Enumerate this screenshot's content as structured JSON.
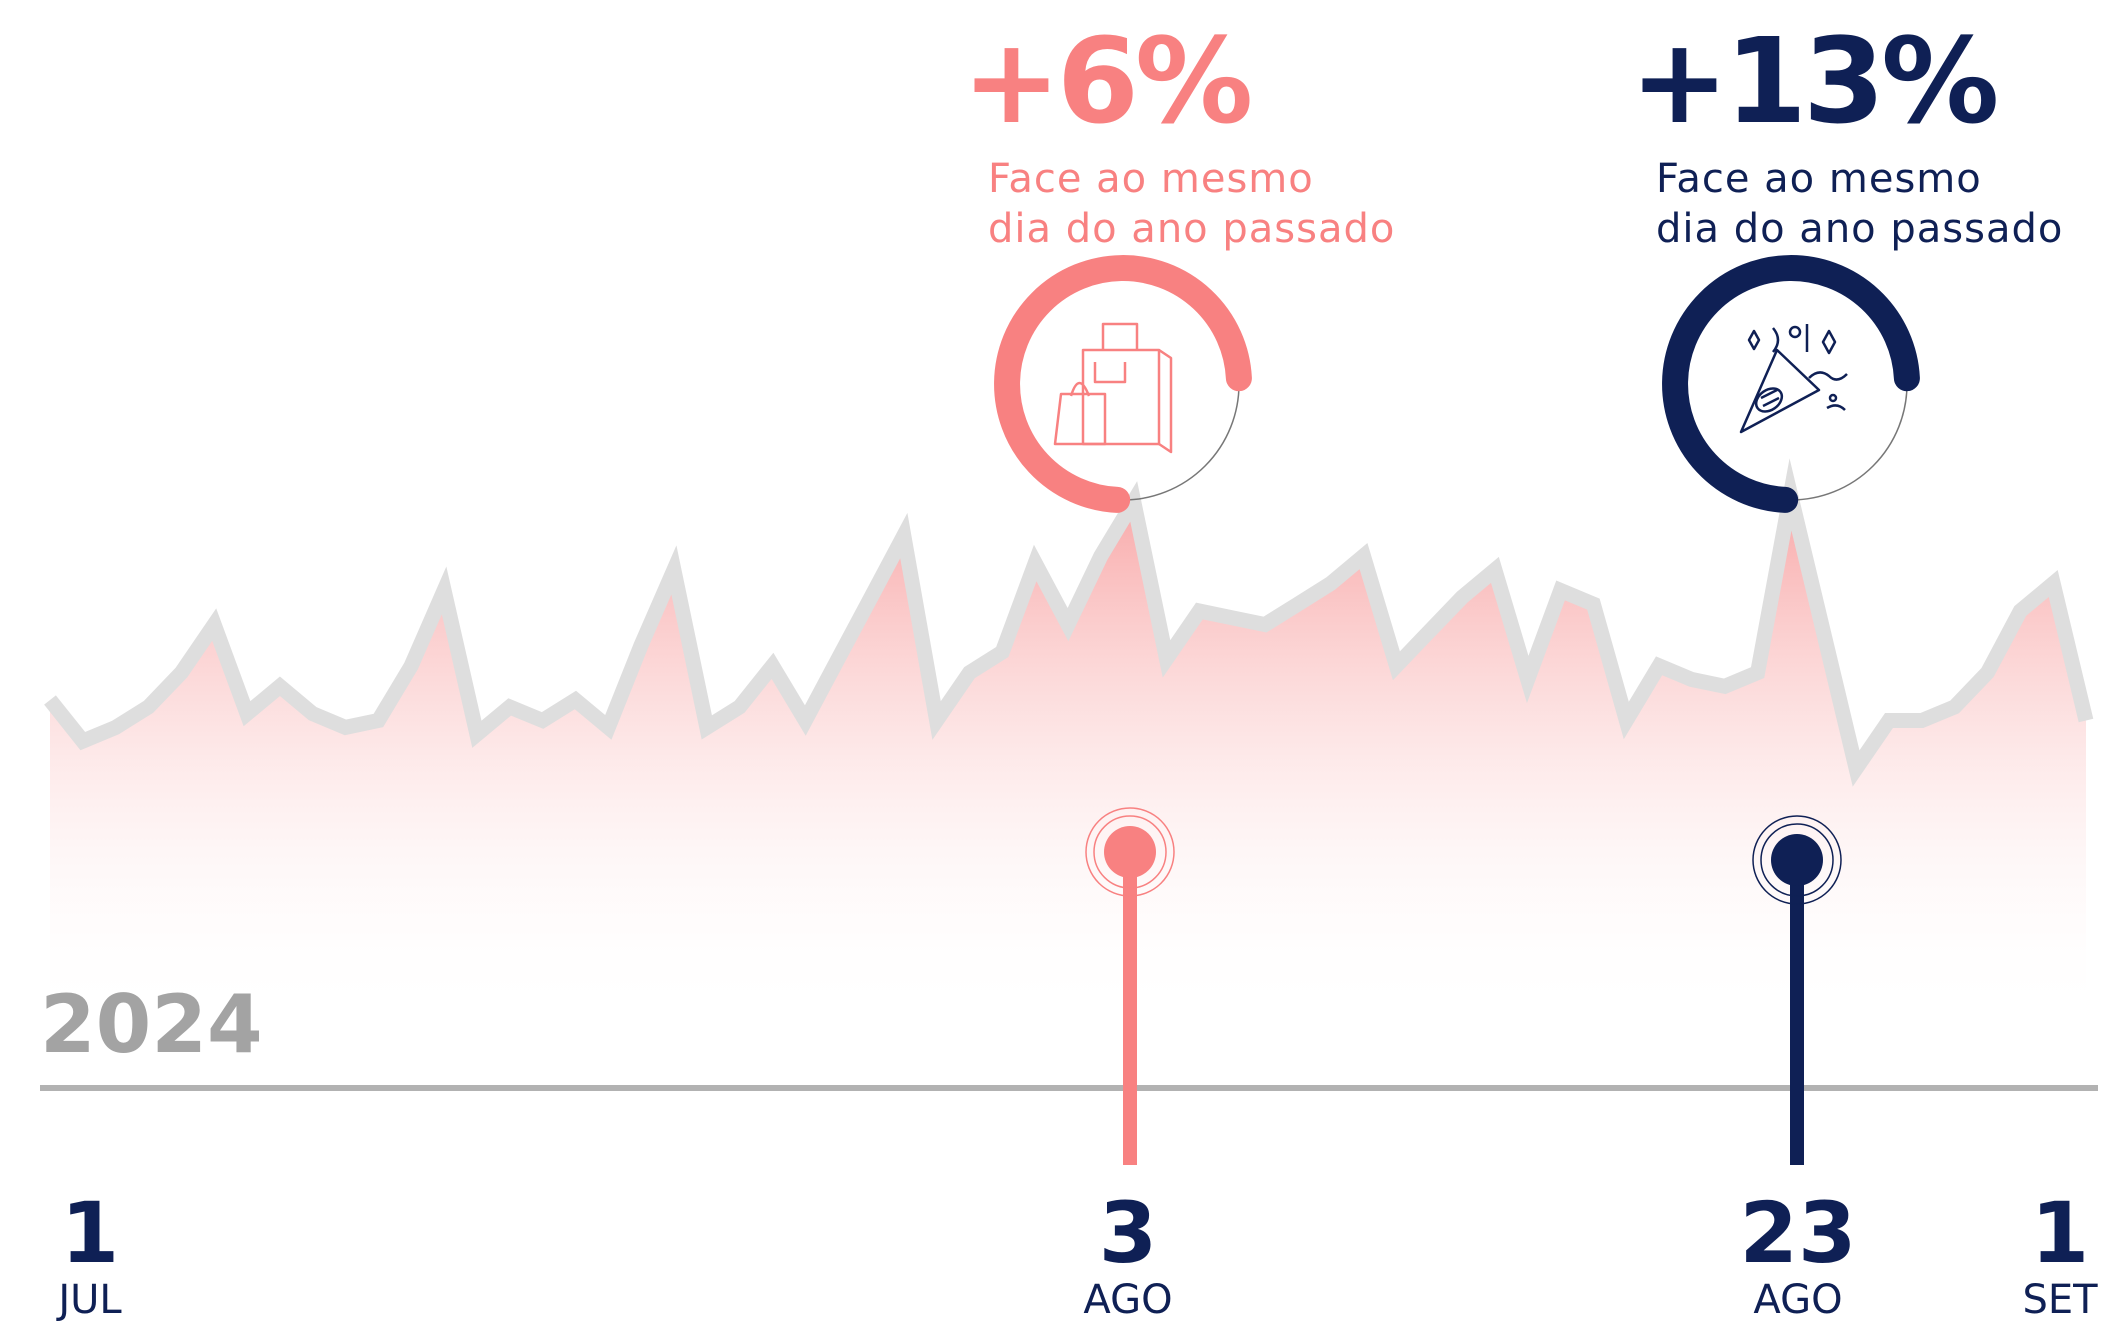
{
  "colors": {
    "line": "#dedede",
    "baseline": "#b2b2b2",
    "fill_top": "#f8a7a7",
    "coral": "#f88181",
    "navy": "#0f2055",
    "year": "#a3a3a3"
  },
  "year_label": "2024",
  "callouts": [
    {
      "pct": "+6%",
      "note_line1": "Face ao mesmo",
      "note_line2": "dia do ano passado",
      "icon": "shopping-bags-icon",
      "gauge_fraction": 0.75
    },
    {
      "pct": "+13%",
      "note_line1": "Face ao mesmo",
      "note_line2": "dia do ano passado",
      "icon": "party-popper-icon",
      "gauge_fraction": 0.75
    }
  ],
  "x_labels": [
    {
      "day": "1",
      "month": "JUL"
    },
    {
      "day": "3",
      "month": "AGO"
    },
    {
      "day": "23",
      "month": "AGO"
    },
    {
      "day": "1",
      "month": "SET"
    }
  ],
  "chart_data": {
    "type": "area",
    "x_start": "1 JUL",
    "x_end": "1 SET",
    "values": [
      40,
      34,
      36,
      39,
      44,
      51,
      38,
      42,
      38,
      36,
      37,
      45,
      56,
      35,
      39,
      37,
      40,
      36,
      48,
      59,
      36,
      39,
      45,
      37,
      46,
      55,
      64,
      37,
      44,
      47,
      60,
      51,
      61,
      69,
      46,
      53,
      52,
      51,
      54,
      57,
      61,
      45,
      50,
      55,
      59,
      43,
      56,
      54,
      37,
      45,
      43,
      42,
      44,
      70,
      50,
      30,
      37,
      37,
      39,
      44,
      53,
      57,
      37
    ],
    "highlights": [
      {
        "day": "3",
        "month": "AGO",
        "value": 69,
        "change": "+6%"
      },
      {
        "day": "23",
        "month": "AGO",
        "value": 70,
        "change": "+13%"
      }
    ]
  }
}
